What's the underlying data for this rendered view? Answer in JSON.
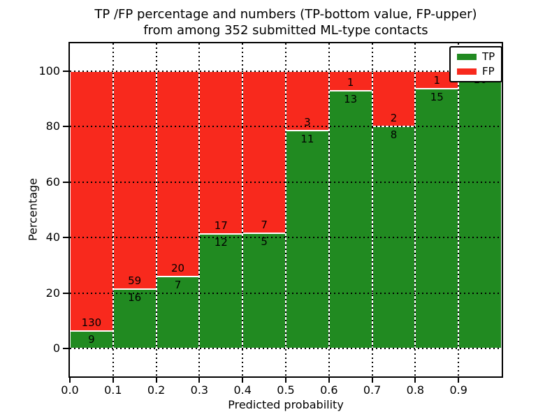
{
  "figure": {
    "title_line1": "TP /FP percentage and numbers (TP-bottom value, FP-upper)",
    "title_line2": "from among 352 submitted ML-type contacts"
  },
  "chart_data": {
    "type": "bar",
    "stacked": true,
    "title": "TP /FP percentage and numbers (TP-bottom value, FP-upper) from among 352 submitted ML-type contacts",
    "xlabel": "Predicted probability",
    "ylabel": "Percentage",
    "xlim": [
      0.0,
      1.0
    ],
    "ylim": [
      -10,
      110
    ],
    "grid": true,
    "legend_position": "upper right",
    "total_contacts": 352,
    "bin_width": 0.1,
    "categories": [
      "0.0-0.1",
      "0.1-0.2",
      "0.2-0.3",
      "0.3-0.4",
      "0.4-0.5",
      "0.5-0.6",
      "0.6-0.7",
      "0.7-0.8",
      "0.8-0.9",
      "0.9-1.0"
    ],
    "x_tick_labels": [
      "0.0",
      "0.1",
      "0.2",
      "0.3",
      "0.4",
      "0.5",
      "0.6",
      "0.7",
      "0.8",
      "0.9"
    ],
    "y_tick_labels": [
      "0",
      "20",
      "40",
      "60",
      "80",
      "100"
    ],
    "y_tick_values": [
      0,
      20,
      40,
      60,
      80,
      100
    ],
    "series": [
      {
        "name": "TP",
        "color": "#218a21",
        "values": [
          9,
          16,
          7,
          12,
          5,
          11,
          13,
          8,
          15,
          16
        ]
      },
      {
        "name": "FP",
        "color": "#f8291d",
        "values": [
          130,
          59,
          20,
          17,
          7,
          3,
          1,
          2,
          1,
          0
        ]
      }
    ],
    "tp_percent": [
      6.5,
      21.3,
      25.9,
      41.4,
      41.7,
      78.6,
      92.9,
      80.0,
      93.8,
      100.0
    ],
    "colors": {
      "tp": "#218a21",
      "fp": "#f8291d",
      "grid": "#000000",
      "background": "#ffffff"
    }
  }
}
